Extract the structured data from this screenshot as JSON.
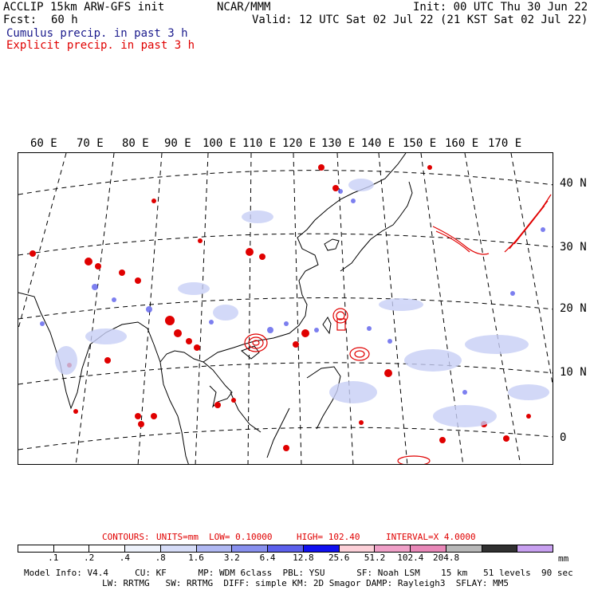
{
  "header": {
    "title": "ACCLIP 15km ARW-GFS init",
    "org": "NCAR/MMM",
    "init": "Init: 00 UTC Thu 30 Jun 22",
    "fcst_label": "Fcst:",
    "fcst_value": "60 h",
    "valid": "Valid: 12 UTC Sat 02 Jul 22 (21 KST Sat 02 Jul 22)",
    "legend_cumulus": "Cumulus precip. in past 3 h",
    "legend_explicit": "Explicit precip. in past 3 h"
  },
  "map": {
    "lon_labels": [
      "60 E",
      "70 E",
      "80 E",
      "90 E",
      "100 E",
      "110 E",
      "120 E",
      "130 E",
      "140 E",
      "150 E",
      "160 E",
      "170 E"
    ],
    "lat_labels": [
      "40 N",
      "30 N",
      "20 N",
      "10 N",
      "0"
    ],
    "colors": {
      "land": "#000000",
      "grid": "#000000",
      "cumulus": "#3333ff",
      "explicit": "#e00000"
    }
  },
  "contours": {
    "label": "CONTOURS:",
    "units": "UNITS=mm",
    "low": "LOW= 0.10000",
    "high": "HIGH= 102.40",
    "interval": "INTERVAL=X 4.0000"
  },
  "colorbar": {
    "colors": [
      "#ffffff",
      "#ffffff",
      "#ffffff",
      "#eef2fb",
      "#d6dcf7",
      "#b0b8f2",
      "#8890ee",
      "#5c60ec",
      "#1010f0",
      "#fcd0d8",
      "#f0a0c8",
      "#e888b8",
      "#b8b8b8",
      "#303030",
      "#c8a0f0"
    ],
    "labels": [
      ".1",
      ".2",
      ".4",
      ".8",
      "1.6",
      "3.2",
      "6.4",
      "12.8",
      "25.6",
      "51.2",
      "102.4",
      "204.8"
    ],
    "units": "mm"
  },
  "footer": {
    "line1": "Model Info: V4.4     CU: KF      MP: WDM 6class  PBL: YSU      SF: Noah LSM    15 km   51 levels  90 sec",
    "line2": "LW: RRTMG   SW: RRTMG  DIFF: simple KM: 2D Smagor DAMP: Rayleigh3  SFLAY: MM5"
  }
}
